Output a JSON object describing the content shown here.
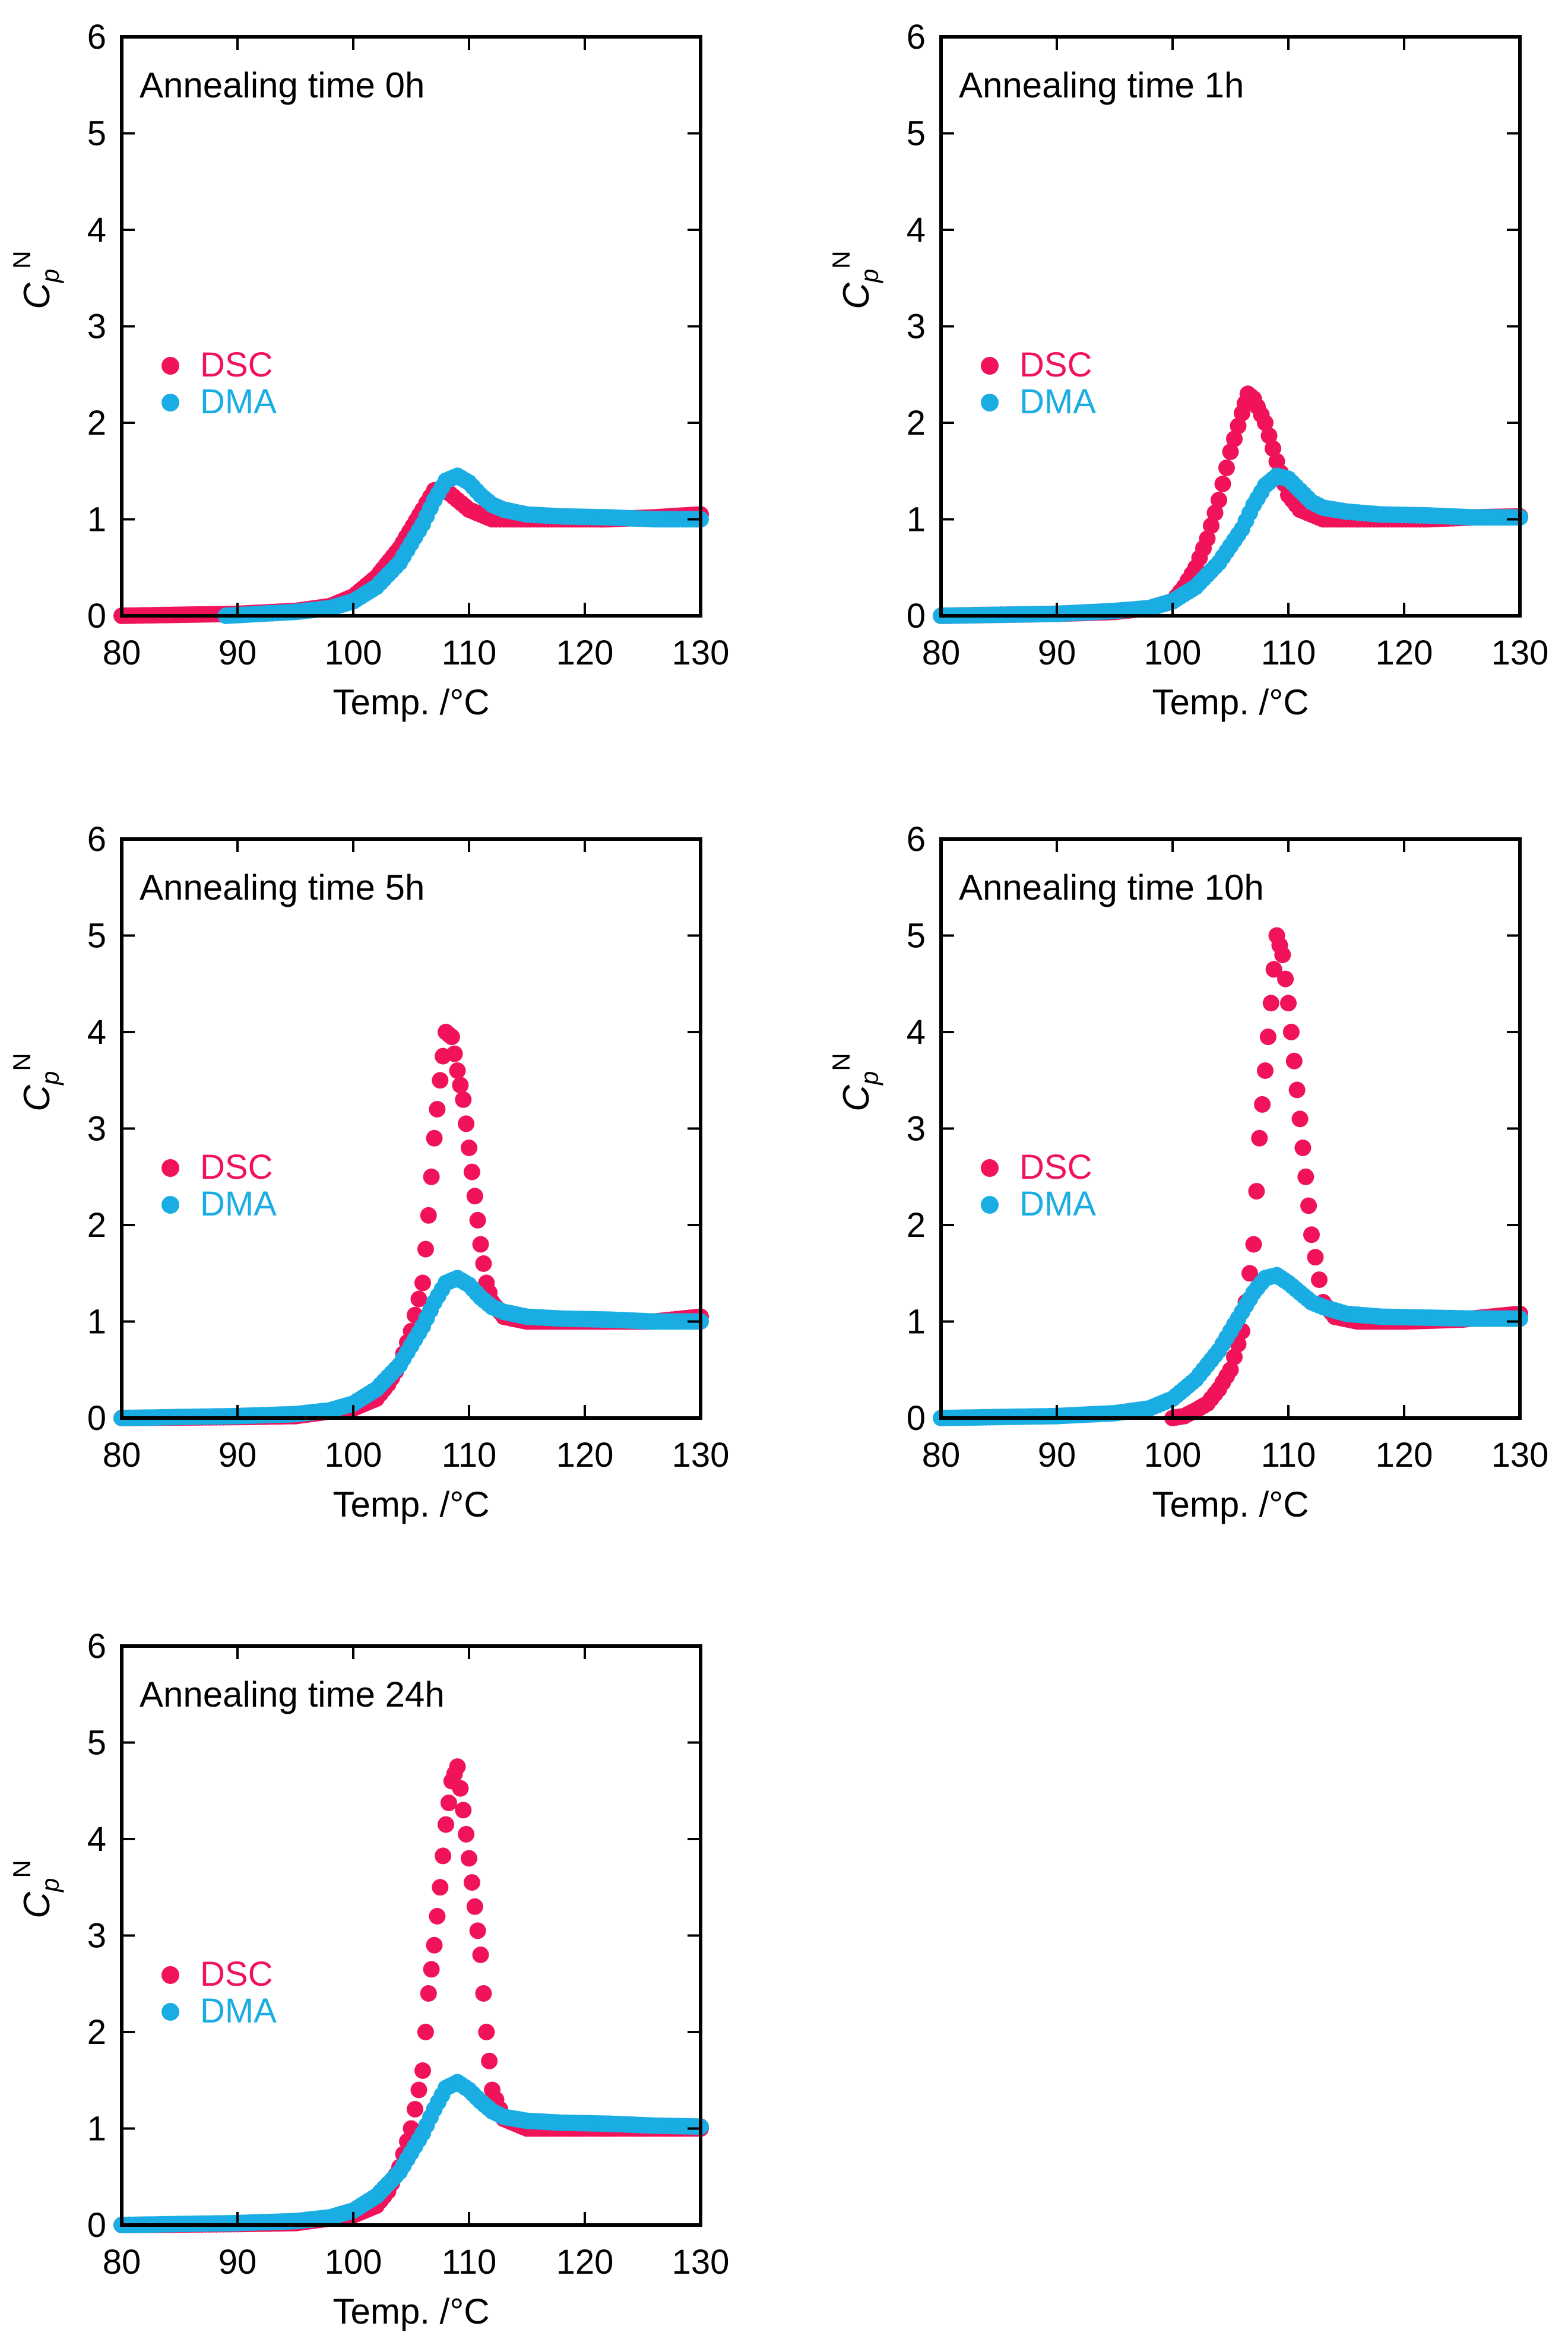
{
  "colors": {
    "dsc": "#f0135a",
    "dma": "#1aade3",
    "axis": "#000000"
  },
  "chart_data": [
    {
      "type": "scatter",
      "title": "Annealing time 0h",
      "xlabel": "Temp. /°C",
      "ylabel_main": "C",
      "ylabel_sub": "p",
      "ylabel_sup": "N",
      "xlim": [
        80,
        130
      ],
      "ylim": [
        0,
        6
      ],
      "xticks": [
        80,
        90,
        100,
        110,
        120,
        130
      ],
      "yticks": [
        0,
        1,
        2,
        3,
        4,
        5,
        6
      ],
      "legend_position": "center-left",
      "series": [
        {
          "name": "DSC",
          "x": [
            80,
            90,
            95,
            98,
            100,
            102,
            104,
            106,
            107,
            108,
            109,
            110,
            111,
            112,
            113,
            115,
            118,
            122,
            126,
            130
          ],
          "y": [
            0,
            0.02,
            0.05,
            0.1,
            0.2,
            0.4,
            0.7,
            1.1,
            1.3,
            1.3,
            1.2,
            1.1,
            1.05,
            1.0,
            1.0,
            1.0,
            1.0,
            1.0,
            1.02,
            1.05
          ]
        },
        {
          "name": "DMA",
          "x": [
            89,
            92,
            95,
            98,
            100,
            102,
            104,
            106,
            107,
            108,
            109,
            110,
            111,
            112,
            113,
            115,
            118,
            122,
            126,
            130
          ],
          "y": [
            0,
            0.02,
            0.04,
            0.08,
            0.15,
            0.3,
            0.55,
            0.95,
            1.2,
            1.4,
            1.45,
            1.38,
            1.25,
            1.15,
            1.1,
            1.05,
            1.03,
            1.02,
            1.0,
            1.0
          ]
        }
      ]
    },
    {
      "type": "scatter",
      "title": "Annealing time 1h",
      "xlabel": "Temp. /°C",
      "ylabel_main": "C",
      "ylabel_sub": "p",
      "ylabel_sup": "N",
      "xlim": [
        80,
        130
      ],
      "ylim": [
        0,
        6
      ],
      "xticks": [
        80,
        90,
        100,
        110,
        120,
        130
      ],
      "yticks": [
        0,
        1,
        2,
        3,
        4,
        5,
        6
      ],
      "legend_position": "center-left",
      "series": [
        {
          "name": "DSC",
          "x": [
            80,
            90,
            95,
            98,
            100,
            101,
            102,
            103,
            104,
            105,
            106,
            106.5,
            107,
            108,
            109,
            110,
            111,
            112,
            113,
            115,
            118,
            122,
            126,
            130
          ],
          "y": [
            0,
            0.02,
            0.04,
            0.08,
            0.15,
            0.3,
            0.5,
            0.8,
            1.2,
            1.7,
            2.1,
            2.3,
            2.25,
            2.0,
            1.6,
            1.25,
            1.1,
            1.05,
            1.0,
            1.0,
            1.0,
            1.0,
            1.02,
            1.03
          ]
        },
        {
          "name": "DMA",
          "x": [
            80,
            90,
            95,
            98,
            100,
            102,
            104,
            106,
            107,
            108,
            109,
            110,
            111,
            112,
            113,
            115,
            118,
            122,
            126,
            130
          ],
          "y": [
            0,
            0.02,
            0.05,
            0.08,
            0.15,
            0.3,
            0.55,
            0.9,
            1.15,
            1.35,
            1.45,
            1.42,
            1.3,
            1.18,
            1.12,
            1.08,
            1.05,
            1.04,
            1.02,
            1.02
          ]
        }
      ]
    },
    {
      "type": "scatter",
      "title": "Annealing time 5h",
      "xlabel": "Temp. /°C",
      "ylabel_main": "C",
      "ylabel_sub": "p",
      "ylabel_sup": "N",
      "xlim": [
        80,
        130
      ],
      "ylim": [
        0,
        6
      ],
      "xticks": [
        80,
        90,
        100,
        110,
        120,
        130
      ],
      "yticks": [
        0,
        1,
        2,
        3,
        4,
        5,
        6
      ],
      "legend_position": "center-left",
      "series": [
        {
          "name": "DSC",
          "x": [
            80,
            90,
            95,
            100,
            102,
            103,
            104,
            105,
            106,
            106.5,
            107,
            107.5,
            108,
            108.5,
            109,
            109.5,
            110,
            110.5,
            111,
            111.5,
            112,
            113,
            115,
            118,
            122,
            126,
            130
          ],
          "y": [
            0,
            0.01,
            0.02,
            0.1,
            0.2,
            0.35,
            0.55,
            0.9,
            1.4,
            2.1,
            2.9,
            3.5,
            4.0,
            3.95,
            3.6,
            3.3,
            2.8,
            2.3,
            1.8,
            1.4,
            1.2,
            1.05,
            1.0,
            1.0,
            1.0,
            1.0,
            1.05
          ]
        },
        {
          "name": "DMA",
          "x": [
            80,
            90,
            95,
            98,
            100,
            102,
            104,
            106,
            107,
            108,
            109,
            110,
            111,
            112,
            113,
            115,
            118,
            122,
            126,
            130
          ],
          "y": [
            0,
            0.02,
            0.04,
            0.08,
            0.15,
            0.3,
            0.55,
            0.95,
            1.2,
            1.4,
            1.45,
            1.38,
            1.25,
            1.15,
            1.1,
            1.05,
            1.03,
            1.02,
            1.0,
            1.0
          ]
        }
      ]
    },
    {
      "type": "scatter",
      "title": "Annealing time 10h",
      "xlabel": "Temp. /°C",
      "ylabel_main": "C",
      "ylabel_sub": "p",
      "ylabel_sup": "N",
      "xlim": [
        80,
        130
      ],
      "ylim": [
        0,
        6
      ],
      "xticks": [
        80,
        90,
        100,
        110,
        120,
        130
      ],
      "yticks": [
        0,
        1,
        2,
        3,
        4,
        5,
        6
      ],
      "legend_position": "center-left",
      "series": [
        {
          "name": "DSC",
          "x": [
            100,
            101,
            102,
            103,
            104,
            105,
            106,
            107,
            107.5,
            108,
            108.5,
            109,
            109.5,
            110,
            110.5,
            111,
            111.5,
            112,
            113,
            114,
            116,
            120,
            125,
            130
          ],
          "y": [
            0,
            0.02,
            0.08,
            0.15,
            0.3,
            0.5,
            0.9,
            1.8,
            2.9,
            3.6,
            4.3,
            5.0,
            4.8,
            4.3,
            3.7,
            3.1,
            2.5,
            1.9,
            1.2,
            1.05,
            1.0,
            1.0,
            1.02,
            1.08
          ]
        },
        {
          "name": "DMA",
          "x": [
            80,
            90,
            95,
            98,
            100,
            102,
            104,
            106,
            107,
            108,
            109,
            110,
            111,
            112,
            113,
            115,
            118,
            122,
            126,
            130
          ],
          "y": [
            0,
            0.02,
            0.05,
            0.1,
            0.2,
            0.4,
            0.7,
            1.1,
            1.3,
            1.45,
            1.48,
            1.4,
            1.3,
            1.2,
            1.15,
            1.08,
            1.05,
            1.04,
            1.03,
            1.03
          ]
        }
      ]
    },
    {
      "type": "scatter",
      "title": "Annealing time 24h",
      "xlabel": "Temp. /°C",
      "ylabel_main": "C",
      "ylabel_sub": "p",
      "ylabel_sup": "N",
      "xlim": [
        80,
        130
      ],
      "ylim": [
        0,
        6
      ],
      "xticks": [
        80,
        90,
        100,
        110,
        120,
        130
      ],
      "yticks": [
        0,
        1,
        2,
        3,
        4,
        5,
        6
      ],
      "legend_position": "center-left",
      "series": [
        {
          "name": "DSC",
          "x": [
            80,
            90,
            95,
            100,
            102,
            103,
            104,
            105,
            106,
            106.5,
            107,
            107.5,
            108,
            108.5,
            109,
            109.5,
            110,
            110.5,
            111,
            111.5,
            112,
            113,
            115,
            118,
            122,
            126,
            130
          ],
          "y": [
            0,
            0.01,
            0.02,
            0.1,
            0.2,
            0.35,
            0.6,
            1.0,
            1.6,
            2.4,
            2.9,
            3.5,
            4.15,
            4.6,
            4.75,
            4.3,
            3.8,
            3.3,
            2.8,
            2.0,
            1.4,
            1.1,
            1.0,
            1.0,
            1.0,
            1.0,
            1.0
          ]
        },
        {
          "name": "DMA",
          "x": [
            80,
            90,
            95,
            98,
            100,
            102,
            104,
            106,
            107,
            108,
            109,
            110,
            111,
            112,
            113,
            115,
            118,
            122,
            126,
            130
          ],
          "y": [
            0,
            0.02,
            0.04,
            0.08,
            0.15,
            0.3,
            0.55,
            0.95,
            1.2,
            1.42,
            1.48,
            1.4,
            1.28,
            1.18,
            1.12,
            1.08,
            1.06,
            1.05,
            1.03,
            1.02
          ]
        }
      ]
    }
  ]
}
